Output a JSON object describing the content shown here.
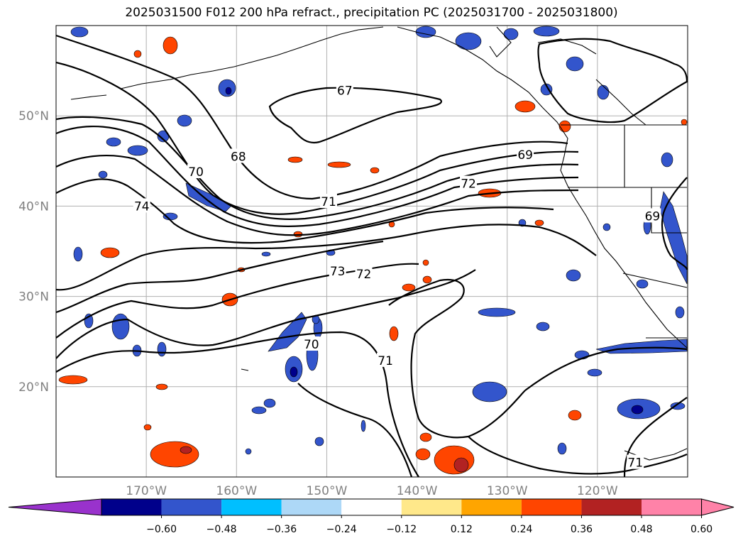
{
  "title": "2025031500 F012 200 hPa refract., precipitation PC (2025031700 - 2025031800)",
  "map": {
    "lon_range": [
      -180,
      -110
    ],
    "lat_range": [
      10,
      60
    ],
    "lon_ticks": [
      {
        "lon": -170,
        "label": "170°W"
      },
      {
        "lon": -160,
        "label": "160°W"
      },
      {
        "lon": -150,
        "label": "150°W"
      },
      {
        "lon": -140,
        "label": "140°W"
      },
      {
        "lon": -130,
        "label": "130°W"
      },
      {
        "lon": -120,
        "label": "120°W"
      }
    ],
    "lat_ticks": [
      {
        "lat": 20,
        "label": "20°N"
      },
      {
        "lat": 30,
        "label": "30°N"
      },
      {
        "lat": 40,
        "label": "40°N"
      },
      {
        "lat": 50,
        "label": "50°N"
      }
    ],
    "grid": true,
    "contour_labels": [
      {
        "text": "67",
        "lon": -148.0,
        "lat": 52.8
      },
      {
        "text": "68",
        "lon": -159.8,
        "lat": 45.5
      },
      {
        "text": "69",
        "lon": -128.0,
        "lat": 45.7
      },
      {
        "text": "70",
        "lon": -164.5,
        "lat": 43.8
      },
      {
        "text": "74",
        "lon": -170.5,
        "lat": 40.0
      },
      {
        "text": "71",
        "lon": -149.8,
        "lat": 40.5
      },
      {
        "text": "72",
        "lon": -134.3,
        "lat": 42.5
      },
      {
        "text": "73",
        "lon": -148.8,
        "lat": 32.8
      },
      {
        "text": "72",
        "lon": -145.9,
        "lat": 32.5
      },
      {
        "text": "70",
        "lon": -151.7,
        "lat": 24.7
      },
      {
        "text": "71",
        "lon": -143.5,
        "lat": 22.9
      },
      {
        "text": "69",
        "lon": -113.9,
        "lat": 38.9
      },
      {
        "text": "71",
        "lon": -115.8,
        "lat": 11.6
      }
    ]
  },
  "colorbar": {
    "ticks": [
      "−0.60",
      "−0.48",
      "−0.36",
      "−0.24",
      "−0.12",
      "0.12",
      "0.24",
      "0.36",
      "0.48",
      "0.60"
    ],
    "colors": [
      "#9932cc",
      "#00008b",
      "#3355cc",
      "#00bfff",
      "#add8f7",
      "#ffffff",
      "#ffe88a",
      "#ffa500",
      "#ff4500",
      "#b22222",
      "#ff82a8",
      "#ff82a8"
    ],
    "extend": "both"
  }
}
